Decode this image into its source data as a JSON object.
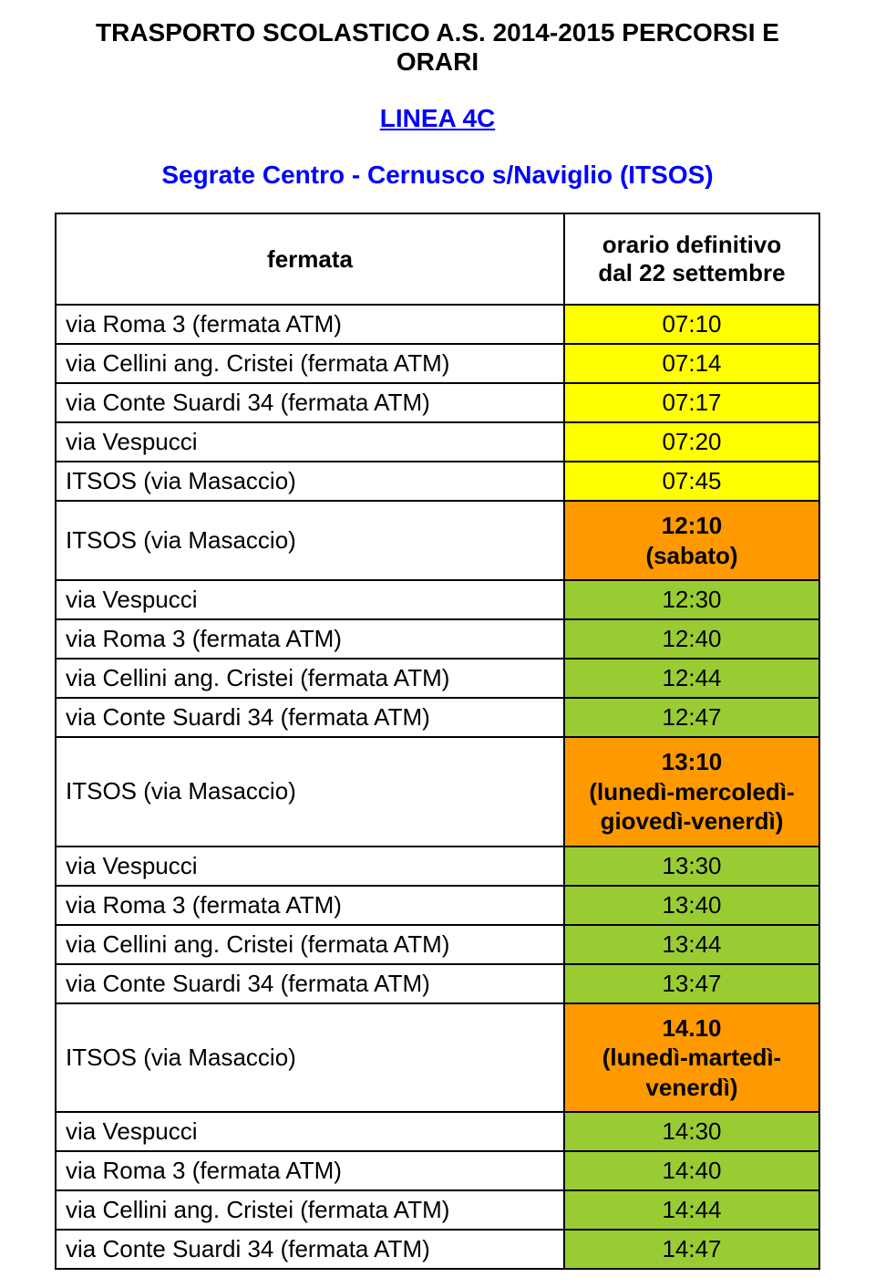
{
  "document_title": "TRASPORTO SCOLASTICO A.S. 2014-2015 PERCORSI E ORARI",
  "line_name": "LINEA 4C",
  "route_name": "Segrate Centro - Cernusco s/Naviglio (ITSOS)",
  "colors": {
    "yellow": "#ffff00",
    "green": "#99cc33",
    "orange": "#ff9900",
    "link_blue": "#0000ff",
    "border": "#000000",
    "text": "#000000"
  },
  "header": {
    "stop_label": "fermata",
    "time_label_line1": "orario definitivo",
    "time_label_line2": "dal 22 settembre"
  },
  "stops": {
    "roma3": "via Roma 3  (fermata ATM)",
    "cellini": "via Cellini ang. Cristei (fermata ATM)",
    "conte": "via Conte Suardi 34 (fermata ATM)",
    "vespucci": "via Vespucci",
    "itsos_dest": "ITSOS (via Masaccio)",
    "itsos_origin": "ITSOS (via Masaccio)"
  },
  "yellow_block": {
    "roma3": "07:10",
    "cellini": "07:14",
    "conte": "07:17",
    "vespucci": "07:20",
    "itsos": "07:45"
  },
  "g1_origin": {
    "line1": "12:10",
    "line2": "(sabato)"
  },
  "g1": {
    "vespucci": "12:30",
    "roma3": "12:40",
    "cellini": "12:44",
    "conte": "12:47"
  },
  "g2_origin": {
    "line1": "13:10",
    "line2": "(lunedì-mercoledì-",
    "line3": "giovedì-venerdì)"
  },
  "g2": {
    "vespucci": "13:30",
    "roma3": "13:40",
    "cellini": "13:44",
    "conte": "13:47"
  },
  "g3_origin": {
    "line1": "14.10",
    "line2": "(lunedì-martedì-",
    "line3": "venerdì)"
  },
  "g3": {
    "vespucci": "14:30",
    "roma3": "14:40",
    "cellini": "14:44",
    "conte": "14:47"
  }
}
